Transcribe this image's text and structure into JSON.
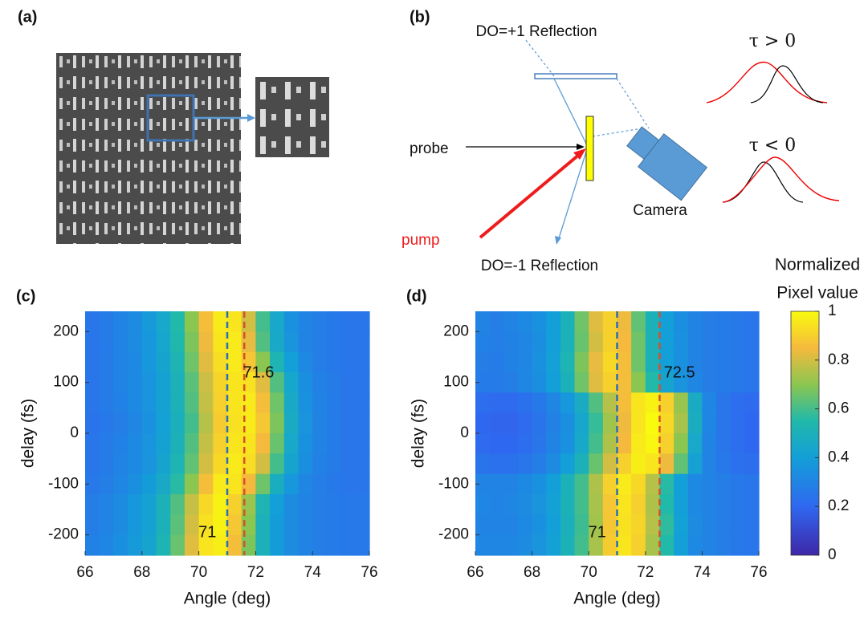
{
  "diagram": {
    "panel_a": "(a)",
    "panel_b": "(b)",
    "do_plus": "DO=+1 Reflection",
    "probe": "probe",
    "pump": "pump",
    "camera": "Camera",
    "do_minus": "DO=-1 Reflection",
    "tau_pos": "τ > 0",
    "tau_neg": "τ < 0"
  },
  "chart_data": [
    {
      "type": "heatmap",
      "label": "(c)",
      "x_label": "Angle (deg)",
      "y_label": "delay (fs)",
      "x": [
        66.25,
        66.75,
        67.25,
        67.75,
        68.25,
        68.75,
        69.25,
        69.75,
        70.25,
        70.75,
        71.25,
        71.75,
        72.25,
        72.75,
        73.25,
        73.75,
        74.25,
        74.75,
        75.25,
        75.75
      ],
      "y": [
        220,
        180,
        140,
        100,
        60,
        20,
        -20,
        -60,
        -100,
        -140,
        -180,
        -220
      ],
      "z": [
        [
          0.25,
          0.27,
          0.3,
          0.33,
          0.38,
          0.45,
          0.55,
          0.7,
          0.86,
          0.96,
          0.95,
          0.8,
          0.6,
          0.45,
          0.35,
          0.3,
          0.28,
          0.26,
          0.25,
          0.25
        ],
        [
          0.25,
          0.27,
          0.3,
          0.33,
          0.37,
          0.44,
          0.54,
          0.68,
          0.84,
          0.95,
          0.96,
          0.83,
          0.62,
          0.46,
          0.36,
          0.3,
          0.28,
          0.26,
          0.25,
          0.25
        ],
        [
          0.25,
          0.27,
          0.3,
          0.32,
          0.37,
          0.43,
          0.52,
          0.66,
          0.82,
          0.93,
          0.96,
          0.88,
          0.7,
          0.52,
          0.4,
          0.32,
          0.28,
          0.26,
          0.25,
          0.25
        ],
        [
          0.25,
          0.27,
          0.3,
          0.32,
          0.36,
          0.42,
          0.5,
          0.63,
          0.79,
          0.91,
          0.95,
          0.94,
          0.82,
          0.62,
          0.44,
          0.34,
          0.29,
          0.27,
          0.25,
          0.25
        ],
        [
          0.25,
          0.27,
          0.29,
          0.32,
          0.36,
          0.42,
          0.5,
          0.62,
          0.78,
          0.9,
          0.95,
          0.96,
          0.86,
          0.66,
          0.46,
          0.35,
          0.3,
          0.27,
          0.25,
          0.25
        ],
        [
          0.24,
          0.26,
          0.28,
          0.31,
          0.35,
          0.41,
          0.49,
          0.6,
          0.76,
          0.89,
          0.94,
          0.96,
          0.88,
          0.68,
          0.47,
          0.36,
          0.3,
          0.27,
          0.25,
          0.25
        ],
        [
          0.25,
          0.27,
          0.29,
          0.32,
          0.36,
          0.42,
          0.5,
          0.62,
          0.78,
          0.9,
          0.95,
          0.95,
          0.85,
          0.65,
          0.45,
          0.35,
          0.3,
          0.27,
          0.25,
          0.25
        ],
        [
          0.25,
          0.27,
          0.3,
          0.32,
          0.36,
          0.43,
          0.52,
          0.64,
          0.8,
          0.92,
          0.96,
          0.93,
          0.8,
          0.6,
          0.43,
          0.34,
          0.29,
          0.27,
          0.25,
          0.25
        ],
        [
          0.26,
          0.28,
          0.31,
          0.34,
          0.39,
          0.46,
          0.56,
          0.7,
          0.86,
          0.96,
          0.95,
          0.85,
          0.66,
          0.48,
          0.37,
          0.31,
          0.28,
          0.26,
          0.25,
          0.25
        ],
        [
          0.28,
          0.3,
          0.33,
          0.37,
          0.42,
          0.5,
          0.62,
          0.78,
          0.92,
          0.98,
          0.9,
          0.72,
          0.52,
          0.4,
          0.33,
          0.3,
          0.28,
          0.27,
          0.26,
          0.26
        ],
        [
          0.28,
          0.3,
          0.33,
          0.37,
          0.42,
          0.5,
          0.63,
          0.8,
          0.94,
          0.98,
          0.88,
          0.7,
          0.5,
          0.39,
          0.33,
          0.3,
          0.28,
          0.27,
          0.26,
          0.26
        ],
        [
          0.29,
          0.31,
          0.34,
          0.38,
          0.43,
          0.52,
          0.65,
          0.82,
          0.95,
          0.97,
          0.86,
          0.68,
          0.5,
          0.39,
          0.33,
          0.3,
          0.28,
          0.27,
          0.26,
          0.26
        ]
      ],
      "xlim": [
        66,
        76
      ],
      "ylim": [
        -240,
        240
      ],
      "xticks": [
        66,
        68,
        70,
        72,
        74,
        76
      ],
      "yticks": [
        -200,
        -100,
        0,
        100,
        200
      ],
      "vlines": [
        {
          "x": 71,
          "color": "#2a6fb0"
        },
        {
          "x": 71.6,
          "color": "#d6502a"
        }
      ],
      "annotations": [
        {
          "text": "71.6",
          "x": 72.1,
          "y": 118
        },
        {
          "text": "71",
          "x": 70.3,
          "y": -196
        }
      ]
    },
    {
      "type": "heatmap",
      "label": "(d)",
      "x_label": "Angle (deg)",
      "y_label": "delay (fs)",
      "x": [
        66.25,
        66.75,
        67.25,
        67.75,
        68.25,
        68.75,
        69.25,
        69.75,
        70.25,
        70.75,
        71.25,
        71.75,
        72.25,
        72.75,
        73.25,
        73.75,
        74.25,
        74.75,
        75.25,
        75.75
      ],
      "y": [
        220,
        180,
        140,
        100,
        60,
        20,
        -20,
        -60,
        -100,
        -140,
        -180,
        -220
      ],
      "z": [
        [
          0.3,
          0.28,
          0.3,
          0.32,
          0.35,
          0.4,
          0.5,
          0.66,
          0.82,
          0.9,
          0.84,
          0.64,
          0.5,
          0.4,
          0.34,
          0.3,
          0.28,
          0.27,
          0.26,
          0.25
        ],
        [
          0.29,
          0.28,
          0.29,
          0.31,
          0.34,
          0.4,
          0.5,
          0.65,
          0.8,
          0.9,
          0.85,
          0.66,
          0.5,
          0.4,
          0.35,
          0.3,
          0.28,
          0.27,
          0.26,
          0.25
        ],
        [
          0.28,
          0.27,
          0.29,
          0.31,
          0.35,
          0.41,
          0.52,
          0.68,
          0.83,
          0.92,
          0.86,
          0.66,
          0.5,
          0.4,
          0.35,
          0.3,
          0.28,
          0.27,
          0.26,
          0.25
        ],
        [
          0.27,
          0.27,
          0.28,
          0.31,
          0.34,
          0.4,
          0.5,
          0.66,
          0.82,
          0.9,
          0.86,
          0.7,
          0.55,
          0.43,
          0.36,
          0.31,
          0.28,
          0.27,
          0.26,
          0.25
        ],
        [
          0.22,
          0.21,
          0.21,
          0.23,
          0.26,
          0.31,
          0.37,
          0.47,
          0.62,
          0.76,
          0.86,
          0.95,
          0.98,
          0.9,
          0.72,
          0.47,
          0.31,
          0.25,
          0.22,
          0.21
        ],
        [
          0.2,
          0.19,
          0.19,
          0.21,
          0.24,
          0.29,
          0.34,
          0.44,
          0.58,
          0.73,
          0.84,
          0.95,
          1,
          0.92,
          0.74,
          0.48,
          0.31,
          0.25,
          0.22,
          0.2
        ],
        [
          0.21,
          0.2,
          0.2,
          0.22,
          0.25,
          0.3,
          0.35,
          0.45,
          0.6,
          0.75,
          0.85,
          0.96,
          0.99,
          0.9,
          0.7,
          0.45,
          0.3,
          0.25,
          0.22,
          0.2
        ],
        [
          0.24,
          0.23,
          0.23,
          0.25,
          0.28,
          0.33,
          0.4,
          0.5,
          0.65,
          0.8,
          0.9,
          0.97,
          0.95,
          0.84,
          0.64,
          0.42,
          0.3,
          0.26,
          0.23,
          0.22
        ],
        [
          0.3,
          0.3,
          0.3,
          0.32,
          0.35,
          0.4,
          0.5,
          0.6,
          0.75,
          0.9,
          0.96,
          0.92,
          0.76,
          0.56,
          0.4,
          0.32,
          0.3,
          0.28,
          0.26,
          0.25
        ],
        [
          0.31,
          0.3,
          0.31,
          0.33,
          0.36,
          0.41,
          0.5,
          0.6,
          0.74,
          0.88,
          0.95,
          0.9,
          0.75,
          0.55,
          0.4,
          0.32,
          0.3,
          0.28,
          0.26,
          0.25
        ],
        [
          0.3,
          0.3,
          0.3,
          0.32,
          0.35,
          0.4,
          0.49,
          0.59,
          0.73,
          0.88,
          0.94,
          0.91,
          0.76,
          0.57,
          0.41,
          0.33,
          0.3,
          0.28,
          0.26,
          0.25
        ],
        [
          0.31,
          0.31,
          0.31,
          0.33,
          0.36,
          0.41,
          0.5,
          0.6,
          0.74,
          0.89,
          0.95,
          0.9,
          0.74,
          0.55,
          0.4,
          0.32,
          0.3,
          0.28,
          0.26,
          0.25
        ]
      ],
      "xlim": [
        66,
        76
      ],
      "ylim": [
        -240,
        240
      ],
      "xticks": [
        66,
        68,
        70,
        72,
        74,
        76
      ],
      "yticks": [
        -200,
        -100,
        0,
        100,
        200
      ],
      "vlines": [
        {
          "x": 71,
          "color": "#2a6fb0"
        },
        {
          "x": 72.5,
          "color": "#d6502a"
        }
      ],
      "annotations": [
        {
          "text": "72.5",
          "x": 73.2,
          "y": 118
        },
        {
          "text": "71",
          "x": 70.3,
          "y": -196
        }
      ],
      "colorbar": {
        "label": [
          "Normalized",
          "Pixel value"
        ],
        "lim": [
          0,
          1
        ],
        "ticks": [
          0,
          0.2,
          0.4,
          0.6,
          0.8,
          1
        ]
      }
    }
  ]
}
